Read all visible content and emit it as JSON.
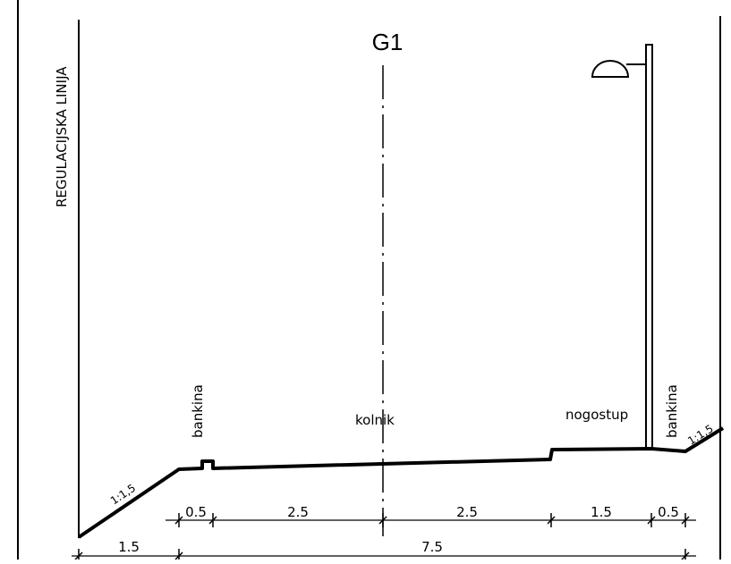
{
  "title": "G1",
  "labels": {
    "regulation_line": "REGULACIJSKA LINIJA",
    "bankina_left": "bankina",
    "kolnik": "kolnik",
    "nogostup": "nogostup",
    "bankina_right": "bankina",
    "slope_left": "1:1,5",
    "slope_right": "1:1,5"
  },
  "dimensions": {
    "top_row": [
      "0.5",
      "2.5",
      "2.5",
      "1.5",
      "0.5"
    ],
    "bottom_row": [
      "1.5",
      "7.5"
    ]
  }
}
